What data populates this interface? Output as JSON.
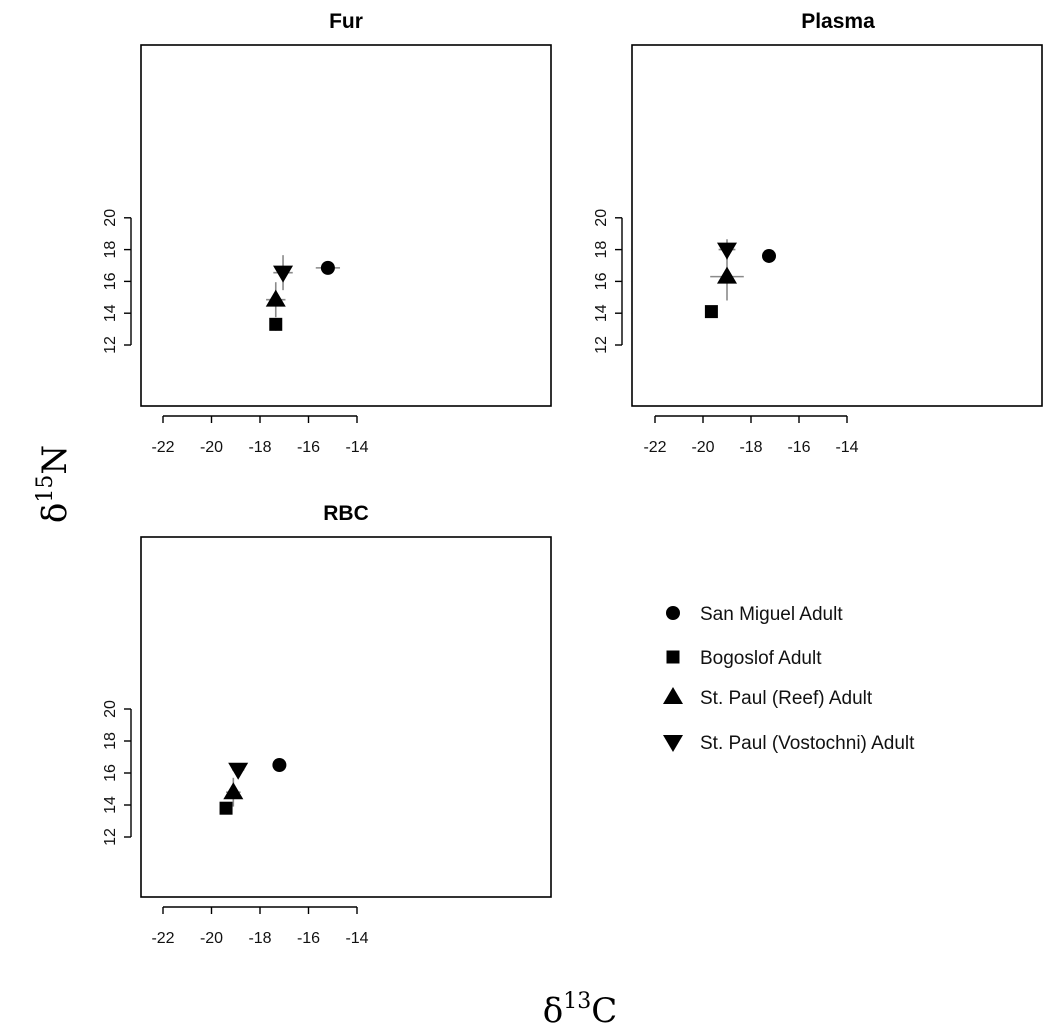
{
  "chart_data": [
    {
      "type": "scatter",
      "title": "Fur",
      "xlim": [
        -22.5,
        -14
      ],
      "ylim": [
        10,
        21.4
      ],
      "xticks": [
        "-22",
        "-20",
        "-18",
        "-16",
        "-14"
      ],
      "yticks": [
        "12",
        "14",
        "16",
        "18",
        "20"
      ],
      "series": [
        {
          "name": "San Miguel Adult",
          "x": -15.2,
          "y": 16.85,
          "x_err": 0.5,
          "y_err": 0.15
        },
        {
          "name": "Bogoslof Adult",
          "x": -17.35,
          "y": 13.3,
          "x_err": 0.1,
          "y_err": 0.4
        },
        {
          "name": "St. Paul (Reef) Adult",
          "x": -17.35,
          "y": 14.85,
          "x_err": 0.4,
          "y_err": 1.1
        },
        {
          "name": "St. Paul (Vostochni) Adult",
          "x": -17.05,
          "y": 16.55,
          "x_err": 0.4,
          "y_err": 1.1
        }
      ]
    },
    {
      "type": "scatter",
      "title": "Plasma",
      "xlim": [
        -22.5,
        -14
      ],
      "ylim": [
        10,
        21.4
      ],
      "xticks": [
        "-22",
        "-20",
        "-18",
        "-16",
        "-14"
      ],
      "yticks": [
        "12",
        "14",
        "16",
        "18",
        "20"
      ],
      "series": [
        {
          "name": "San Miguel Adult",
          "x": -17.25,
          "y": 17.6,
          "x_err": 0.1,
          "y_err": 0.1
        },
        {
          "name": "Bogoslof Adult",
          "x": -19.65,
          "y": 14.1,
          "x_err": 0.1,
          "y_err": 0.1
        },
        {
          "name": "St. Paul (Reef) Adult",
          "x": -19.0,
          "y": 16.3,
          "x_err": 0.7,
          "y_err": 1.5
        },
        {
          "name": "St. Paul (Vostochni) Adult",
          "x": -19.0,
          "y": 18.0,
          "x_err": 0.35,
          "y_err": 0.65
        }
      ]
    },
    {
      "type": "scatter",
      "title": "RBC",
      "xlim": [
        -22.5,
        -14
      ],
      "ylim": [
        10,
        21.4
      ],
      "xticks": [
        "-22",
        "-20",
        "-18",
        "-16",
        "-14"
      ],
      "yticks": [
        "12",
        "14",
        "16",
        "18",
        "20"
      ],
      "series": [
        {
          "name": "San Miguel Adult",
          "x": -17.2,
          "y": 16.5,
          "x_err": 0.1,
          "y_err": 0.1
        },
        {
          "name": "Bogoslof Adult",
          "x": -19.4,
          "y": 13.8,
          "x_err": 0.1,
          "y_err": 0.1
        },
        {
          "name": "St. Paul (Reef) Adult",
          "x": -19.1,
          "y": 14.8,
          "x_err": 0.3,
          "y_err": 0.9
        },
        {
          "name": "St. Paul (Vostochni) Adult",
          "x": -18.9,
          "y": 16.2,
          "x_err": 0.25,
          "y_err": 0.35
        }
      ]
    }
  ],
  "legend": {
    "placement": "bottom-right",
    "items": [
      {
        "label": "San Miguel Adult",
        "marker": "circle"
      },
      {
        "label": "Bogoslof Adult",
        "marker": "square"
      },
      {
        "label": "St. Paul (Reef) Adult",
        "marker": "triangle-up"
      },
      {
        "label": "St. Paul (Vostochni) Adult",
        "marker": "triangle-down"
      }
    ]
  },
  "axes": {
    "xlabel_symbol": "δ",
    "xlabel_sup": "13",
    "xlabel_element": "C",
    "ylabel_symbol": "δ",
    "ylabel_sup": "15",
    "ylabel_element": "N"
  },
  "colors": {
    "marker": "#000000",
    "error_bar": "#8a8a8a",
    "frame": "#000000"
  }
}
